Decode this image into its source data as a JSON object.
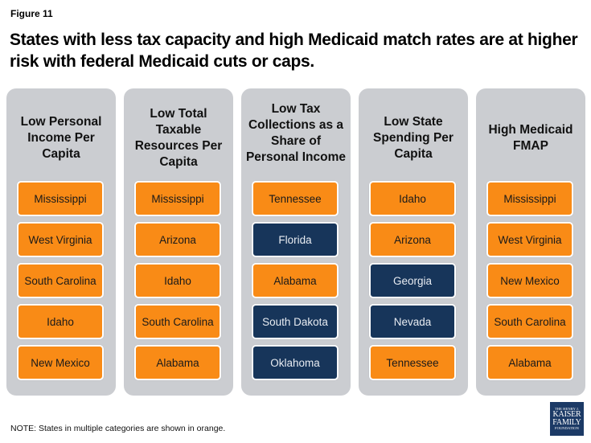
{
  "figure_label": "Figure 11",
  "title": "States with less tax capacity and high Medicaid match rates are at higher risk with federal Medicaid cuts or caps.",
  "colors": {
    "orange": "#f98b16",
    "navy": "#17355a",
    "panel": "#cbcdd1"
  },
  "columns": [
    {
      "heading": "Low Personal Income Per Capita",
      "items": [
        {
          "state": "Mississippi",
          "color": "orange"
        },
        {
          "state": "West Virginia",
          "color": "orange"
        },
        {
          "state": "South Carolina",
          "color": "orange"
        },
        {
          "state": "Idaho",
          "color": "orange"
        },
        {
          "state": "New Mexico",
          "color": "orange"
        }
      ]
    },
    {
      "heading": "Low Total Taxable Resources Per Capita",
      "items": [
        {
          "state": "Mississippi",
          "color": "orange"
        },
        {
          "state": "Arizona",
          "color": "orange"
        },
        {
          "state": "Idaho",
          "color": "orange"
        },
        {
          "state": "South Carolina",
          "color": "orange"
        },
        {
          "state": "Alabama",
          "color": "orange"
        }
      ]
    },
    {
      "heading": "Low Tax Collections as a Share of Personal Income",
      "items": [
        {
          "state": "Tennessee",
          "color": "orange"
        },
        {
          "state": "Florida",
          "color": "navy"
        },
        {
          "state": "Alabama",
          "color": "orange"
        },
        {
          "state": "South Dakota",
          "color": "navy"
        },
        {
          "state": "Oklahoma",
          "color": "navy"
        }
      ]
    },
    {
      "heading": "Low State Spending Per Capita",
      "items": [
        {
          "state": "Idaho",
          "color": "orange"
        },
        {
          "state": "Arizona",
          "color": "orange"
        },
        {
          "state": "Georgia",
          "color": "navy"
        },
        {
          "state": "Nevada",
          "color": "navy"
        },
        {
          "state": "Tennessee",
          "color": "orange"
        }
      ]
    },
    {
      "heading": "High Medicaid FMAP",
      "items": [
        {
          "state": "Mississippi",
          "color": "orange"
        },
        {
          "state": "West Virginia",
          "color": "orange"
        },
        {
          "state": "New Mexico",
          "color": "orange"
        },
        {
          "state": "South Carolina",
          "color": "orange"
        },
        {
          "state": "Alabama",
          "color": "orange"
        }
      ]
    }
  ],
  "note": "NOTE: States in multiple categories are shown in orange.",
  "logo": {
    "line1": "THE HENRY J.",
    "line2": "KAISER",
    "line3": "FAMILY",
    "line4": "FOUNDATION"
  }
}
